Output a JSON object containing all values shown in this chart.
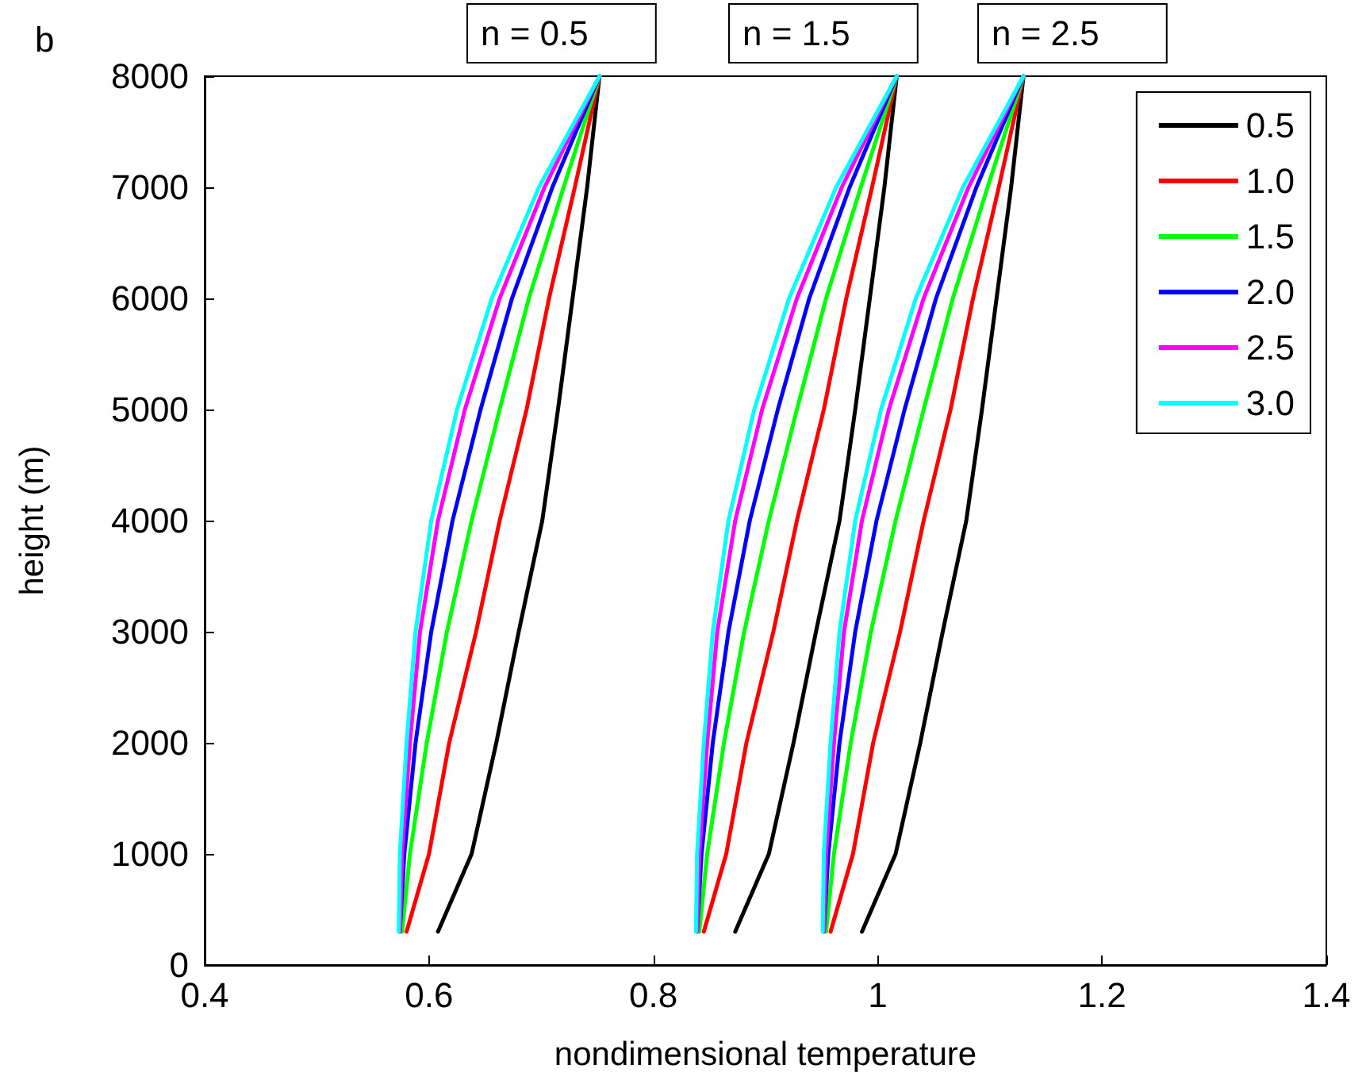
{
  "chart_data": {
    "type": "line",
    "xlabel": "nondimensional temperature",
    "ylabel": "height (m)",
    "xlim": [
      0.4,
      1.4
    ],
    "xticks": [
      0.4,
      0.6,
      0.8,
      1,
      1.2,
      1.4
    ],
    "ylim": [
      0,
      8000
    ],
    "yticks": [
      0,
      1000,
      2000,
      3000,
      4000,
      5000,
      6000,
      7000,
      8000
    ],
    "grid": false,
    "legend": "top right",
    "annotations": [
      "b",
      "n = 0.5",
      "n = 1.5",
      "n = 2.5"
    ],
    "series": [
      {
        "name": "0.5",
        "color": "#000000",
        "x": [
          0.608,
          0.638,
          0.66,
          0.68,
          0.701,
          0.715,
          0.728,
          0.741,
          0.752
        ],
        "values": [
          300,
          1000,
          2000,
          3000,
          4000,
          5000,
          6000,
          7000,
          8000
        ]
      },
      {
        "name": "1.0",
        "color": "#ff0000",
        "x": [
          0.58,
          0.6,
          0.618,
          0.642,
          0.663,
          0.687,
          0.707,
          0.73,
          0.752
        ],
        "values": [
          300,
          1000,
          2000,
          3000,
          4000,
          5000,
          6000,
          7000,
          8000
        ]
      },
      {
        "name": "1.5",
        "color": "#00ff00",
        "x": [
          0.576,
          0.583,
          0.598,
          0.616,
          0.638,
          0.663,
          0.689,
          0.72,
          0.752
        ],
        "values": [
          300,
          1000,
          2000,
          3000,
          4000,
          5000,
          6000,
          7000,
          8000
        ]
      },
      {
        "name": "2.0",
        "color": "#0000ff",
        "x": [
          0.574,
          0.578,
          0.588,
          0.602,
          0.621,
          0.646,
          0.674,
          0.71,
          0.752
        ],
        "values": [
          300,
          1000,
          2000,
          3000,
          4000,
          5000,
          6000,
          7000,
          8000
        ]
      },
      {
        "name": "2.5",
        "color": "#ff00ff",
        "x": [
          0.574,
          0.576,
          0.583,
          0.592,
          0.608,
          0.632,
          0.663,
          0.703,
          0.752
        ],
        "values": [
          300,
          1000,
          2000,
          3000,
          4000,
          5000,
          6000,
          7000,
          8000
        ]
      },
      {
        "name": "3.0",
        "color": "#00ffff",
        "x": [
          0.573,
          0.574,
          0.58,
          0.588,
          0.602,
          0.625,
          0.656,
          0.698,
          0.752
        ],
        "values": [
          300,
          1000,
          2000,
          3000,
          4000,
          5000,
          6000,
          7000,
          8000
        ]
      },
      {
        "color": "#000000",
        "x": [
          0.873,
          0.903,
          0.925,
          0.945,
          0.966,
          0.98,
          0.993,
          1.006,
          1.017
        ],
        "values": [
          300,
          1000,
          2000,
          3000,
          4000,
          5000,
          6000,
          7000,
          8000
        ]
      },
      {
        "color": "#ff0000",
        "x": [
          0.845,
          0.865,
          0.883,
          0.907,
          0.928,
          0.952,
          0.972,
          0.995,
          1.017
        ],
        "values": [
          300,
          1000,
          2000,
          3000,
          4000,
          5000,
          6000,
          7000,
          8000
        ]
      },
      {
        "color": "#00ff00",
        "x": [
          0.841,
          0.848,
          0.863,
          0.881,
          0.903,
          0.928,
          0.954,
          0.985,
          1.017
        ],
        "values": [
          300,
          1000,
          2000,
          3000,
          4000,
          5000,
          6000,
          7000,
          8000
        ]
      },
      {
        "color": "#0000ff",
        "x": [
          0.839,
          0.843,
          0.853,
          0.867,
          0.886,
          0.911,
          0.939,
          0.975,
          1.017
        ],
        "values": [
          300,
          1000,
          2000,
          3000,
          4000,
          5000,
          6000,
          7000,
          8000
        ]
      },
      {
        "color": "#ff00ff",
        "x": [
          0.839,
          0.841,
          0.848,
          0.857,
          0.873,
          0.897,
          0.928,
          0.968,
          1.017
        ],
        "values": [
          300,
          1000,
          2000,
          3000,
          4000,
          5000,
          6000,
          7000,
          8000
        ]
      },
      {
        "color": "#00ffff",
        "x": [
          0.838,
          0.839,
          0.845,
          0.853,
          0.867,
          0.89,
          0.921,
          0.963,
          1.017
        ],
        "values": [
          300,
          1000,
          2000,
          3000,
          4000,
          5000,
          6000,
          7000,
          8000
        ]
      },
      {
        "color": "#000000",
        "x": [
          0.986,
          1.016,
          1.038,
          1.058,
          1.079,
          1.093,
          1.106,
          1.119,
          1.13
        ],
        "values": [
          300,
          1000,
          2000,
          3000,
          4000,
          5000,
          6000,
          7000,
          8000
        ]
      },
      {
        "color": "#ff0000",
        "x": [
          0.958,
          0.978,
          0.996,
          1.02,
          1.041,
          1.065,
          1.085,
          1.108,
          1.13
        ],
        "values": [
          300,
          1000,
          2000,
          3000,
          4000,
          5000,
          6000,
          7000,
          8000
        ]
      },
      {
        "color": "#00ff00",
        "x": [
          0.954,
          0.961,
          0.976,
          0.994,
          1.016,
          1.041,
          1.067,
          1.098,
          1.13
        ],
        "values": [
          300,
          1000,
          2000,
          3000,
          4000,
          5000,
          6000,
          7000,
          8000
        ]
      },
      {
        "color": "#0000ff",
        "x": [
          0.952,
          0.956,
          0.966,
          0.98,
          0.999,
          1.024,
          1.052,
          1.088,
          1.13
        ],
        "values": [
          300,
          1000,
          2000,
          3000,
          4000,
          5000,
          6000,
          7000,
          8000
        ]
      },
      {
        "color": "#ff00ff",
        "x": [
          0.952,
          0.954,
          0.961,
          0.97,
          0.986,
          1.01,
          1.041,
          1.081,
          1.13
        ],
        "values": [
          300,
          1000,
          2000,
          3000,
          4000,
          5000,
          6000,
          7000,
          8000
        ]
      },
      {
        "color": "#00ffff",
        "x": [
          0.951,
          0.952,
          0.958,
          0.966,
          0.98,
          1.003,
          1.034,
          1.076,
          1.13
        ],
        "values": [
          300,
          1000,
          2000,
          3000,
          4000,
          5000,
          6000,
          7000,
          8000
        ]
      }
    ]
  }
}
